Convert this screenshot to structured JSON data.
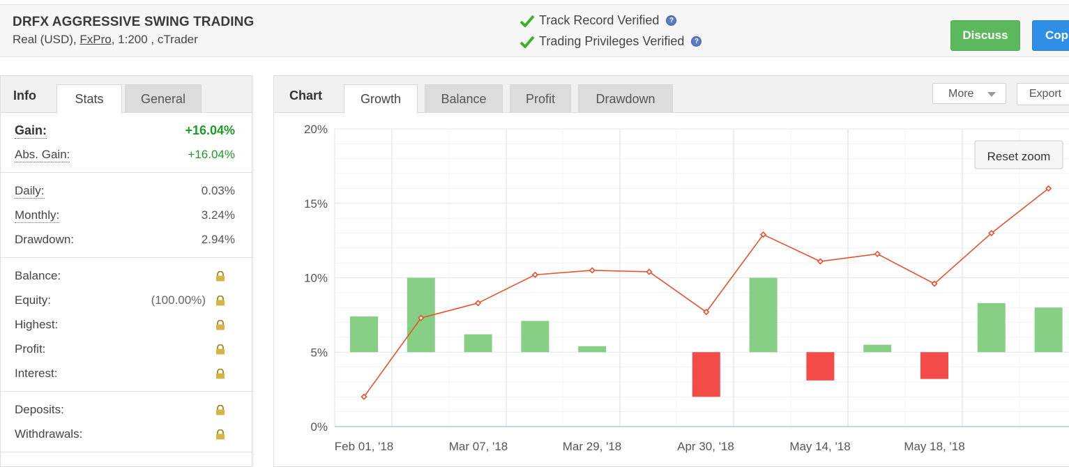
{
  "header": {
    "title": "DRFX AGGRESSIVE SWING TRADING",
    "sub_prefix": "Real (USD), ",
    "broker": "FxPro",
    "sub_suffix": ", 1:200 , cTrader",
    "verified_1": "Track Record Verified",
    "verified_2": "Trading Privileges Verified",
    "discuss_label": "Discuss",
    "copy_label": "Cop"
  },
  "left_panel": {
    "head": "Info",
    "tabs": [
      "Stats",
      "General"
    ],
    "gain_label": "Gain:",
    "gain_value": "+16.04%",
    "abs_gain_label": "Abs. Gain:",
    "abs_gain_value": "+16.04%",
    "daily_label": "Daily:",
    "daily_value": "0.03%",
    "monthly_label": "Monthly:",
    "monthly_value": "3.24%",
    "drawdown_label": "Drawdown:",
    "drawdown_value": "2.94%",
    "balance_label": "Balance:",
    "equity_label": "Equity:",
    "equity_pct": "(100.00%)",
    "highest_label": "Highest:",
    "profit_label": "Profit:",
    "interest_label": "Interest:",
    "deposits_label": "Deposits:",
    "withdrawals_label": "Withdrawals:"
  },
  "chart_panel": {
    "head": "Chart",
    "tabs": [
      "Growth",
      "Balance",
      "Profit",
      "Drawdown"
    ],
    "more_label": "More",
    "export_label": "Export",
    "reset_zoom_label": "Reset zoom"
  },
  "colors": {
    "line": "#e8502c",
    "bar_pos": "#88cf86",
    "bar_neg": "#f24b48",
    "discuss": "#5cb85c",
    "copy": "#2f8ee5"
  },
  "chart_data": {
    "type": "line+bar",
    "y_ticks": [
      "0%",
      "5%",
      "10%",
      "15%",
      "20%"
    ],
    "ylim": [
      0,
      20
    ],
    "x_tick_labels": [
      "Feb 01, '18",
      "Mar 07, '18",
      "Mar 29, '18",
      "Apr 30, '18",
      "May 14, '18",
      "May 18, '18"
    ],
    "growth_line": [
      2.0,
      7.3,
      8.3,
      10.2,
      10.5,
      10.4,
      7.7,
      12.9,
      11.1,
      11.6,
      9.6,
      13.0,
      16.0
    ],
    "bars": [
      7.4,
      10.0,
      6.2,
      7.1,
      5.4,
      null,
      2.0,
      10.0,
      3.1,
      5.5,
      3.2,
      8.3,
      8.0
    ],
    "bar_baseline": 5,
    "grid": true
  }
}
